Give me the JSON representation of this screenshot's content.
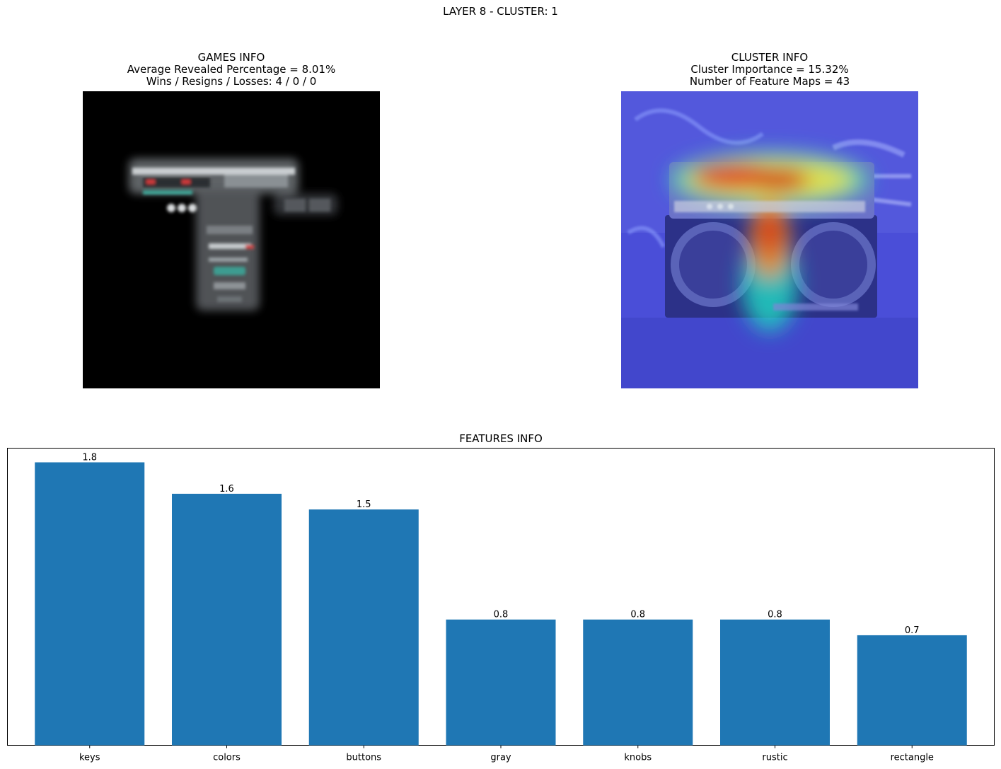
{
  "figure": {
    "suptitle": "LAYER 8 - CLUSTER: 1"
  },
  "games_info": {
    "title": "GAMES INFO",
    "line1": "Average Revealed Percentage = 8.01%",
    "line2": "Wins / Resigns / Losses: 4 / 0 / 0"
  },
  "cluster_info": {
    "title": "CLUSTER INFO",
    "line1": "Cluster Importance = 15.32%",
    "line2": "Number of Feature Maps = 43"
  },
  "chart_data": {
    "type": "bar",
    "title": "FEATURES INFO",
    "xlabel": "",
    "ylabel": "",
    "categories": [
      "keys",
      "colors",
      "buttons",
      "gray",
      "knobs",
      "rustic",
      "rectangle"
    ],
    "values": [
      1.8,
      1.6,
      1.5,
      0.8,
      0.8,
      0.8,
      0.7
    ],
    "value_labels": [
      "1.8",
      "1.6",
      "1.5",
      "0.8",
      "0.8",
      "0.8",
      "0.7"
    ],
    "ylim": [
      0,
      1.89
    ],
    "bar_color": "#1f77b4",
    "y_ticks_visible": false,
    "grid": false
  }
}
